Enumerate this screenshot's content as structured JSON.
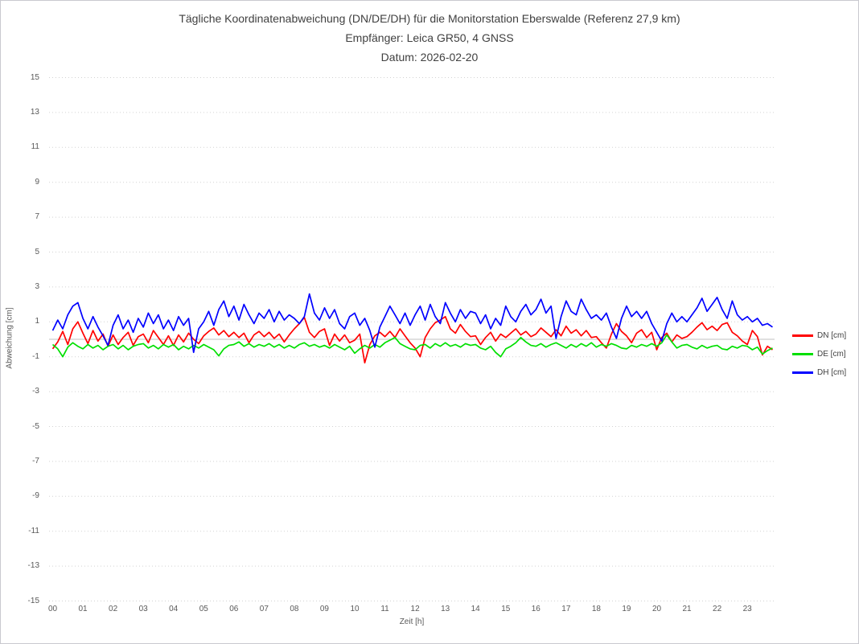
{
  "header": {
    "title": "Tägliche Koordinatenabweichung (DN/DE/DH) für die Monitorstation Eberswalde (Referenz 27,9 km)",
    "subtitle_receiver": "Empfänger: Leica GR50, 4 GNSS",
    "subtitle_date": "Datum: 2026-02-20"
  },
  "colors": {
    "dn": "#ff0000",
    "de": "#00df00",
    "dh": "#0000ff",
    "gridline": "#d2d2d2",
    "zero_line": "#c0c0c0",
    "tick_text": "#595959",
    "title_text": "#404040"
  },
  "chart_data": {
    "type": "line",
    "title": "Tägliche Koordinatenabweichung (DN/DE/DH) für die Monitorstation Eberswalde (Referenz 27,9 km)",
    "subtitle": "Empfänger: Leica GR50, 4 GNSS",
    "date_line": "Datum: 2026-02-20",
    "xlabel": "Zeit [h]",
    "ylabel": "Abweichung [cm]",
    "xlim_hours": [
      0,
      24
    ],
    "ylim": [
      -15,
      15
    ],
    "grid": "horizontal dotted at odd values, solid line at 0",
    "legend_position": "right",
    "xticks": [
      "00",
      "01",
      "02",
      "03",
      "04",
      "05",
      "06",
      "07",
      "08",
      "09",
      "10",
      "11",
      "12",
      "13",
      "14",
      "15",
      "16",
      "17",
      "18",
      "19",
      "20",
      "21",
      "22",
      "23"
    ],
    "yticks": [
      15,
      13,
      11,
      9,
      7,
      5,
      3,
      1,
      -1,
      -3,
      -5,
      -7,
      -9,
      -11,
      -13,
      -15
    ],
    "sample_interval_hours": 0.16667,
    "series": [
      {
        "name": "DN [cm]",
        "color": "#ff0000",
        "values": [
          -0.55,
          -0.15,
          0.45,
          -0.3,
          0.6,
          1.0,
          0.35,
          -0.25,
          0.5,
          -0.1,
          0.3,
          -0.4,
          0.25,
          -0.3,
          0.1,
          0.4,
          -0.35,
          0.15,
          0.3,
          -0.2,
          0.5,
          0.1,
          -0.3,
          0.2,
          -0.35,
          0.25,
          -0.15,
          0.35,
          0.0,
          -0.25,
          0.2,
          0.45,
          0.65,
          0.25,
          0.5,
          0.15,
          0.4,
          0.1,
          0.35,
          -0.2,
          0.25,
          0.45,
          0.15,
          0.4,
          0.05,
          0.3,
          -0.15,
          0.25,
          0.6,
          0.9,
          1.25,
          0.4,
          0.1,
          0.45,
          0.6,
          -0.35,
          0.3,
          -0.1,
          0.25,
          -0.2,
          -0.05,
          0.3,
          -1.35,
          -0.3,
          0.2,
          0.4,
          0.15,
          0.45,
          0.1,
          0.6,
          0.2,
          -0.2,
          -0.5,
          -1.0,
          0.1,
          0.6,
          0.95,
          1.1,
          1.3,
          0.6,
          0.35,
          0.85,
          0.45,
          0.15,
          0.2,
          -0.3,
          0.1,
          0.4,
          -0.1,
          0.3,
          0.1,
          0.35,
          0.6,
          0.25,
          0.45,
          0.15,
          0.3,
          0.65,
          0.4,
          0.15,
          0.55,
          0.2,
          0.75,
          0.35,
          0.55,
          0.2,
          0.5,
          0.1,
          0.15,
          -0.2,
          -0.5,
          0.3,
          0.9,
          0.45,
          0.2,
          -0.2,
          0.35,
          0.55,
          0.1,
          0.4,
          -0.6,
          0.1,
          0.35,
          -0.15,
          0.25,
          0.05,
          0.15,
          0.4,
          0.7,
          0.95,
          0.55,
          0.75,
          0.5,
          0.85,
          0.95,
          0.4,
          0.2,
          -0.1,
          -0.3,
          0.5,
          0.15,
          -0.9,
          -0.4,
          -0.6
        ]
      },
      {
        "name": "DE [cm]",
        "color": "#00df00",
        "values": [
          -0.3,
          -0.55,
          -1.0,
          -0.45,
          -0.2,
          -0.4,
          -0.55,
          -0.3,
          -0.5,
          -0.35,
          -0.6,
          -0.4,
          -0.3,
          -0.55,
          -0.35,
          -0.6,
          -0.4,
          -0.3,
          -0.25,
          -0.5,
          -0.35,
          -0.55,
          -0.3,
          -0.45,
          -0.3,
          -0.6,
          -0.4,
          -0.55,
          -0.35,
          -0.5,
          -0.3,
          -0.45,
          -0.6,
          -0.95,
          -0.55,
          -0.35,
          -0.3,
          -0.15,
          -0.4,
          -0.25,
          -0.45,
          -0.3,
          -0.4,
          -0.25,
          -0.45,
          -0.3,
          -0.5,
          -0.35,
          -0.5,
          -0.3,
          -0.2,
          -0.4,
          -0.3,
          -0.45,
          -0.35,
          -0.5,
          -0.3,
          -0.45,
          -0.6,
          -0.4,
          -0.8,
          -0.55,
          -0.35,
          -0.5,
          -0.3,
          -0.45,
          -0.2,
          -0.05,
          0.1,
          -0.25,
          -0.4,
          -0.55,
          -0.6,
          -0.35,
          -0.3,
          -0.5,
          -0.25,
          -0.4,
          -0.2,
          -0.4,
          -0.3,
          -0.45,
          -0.25,
          -0.35,
          -0.3,
          -0.5,
          -0.6,
          -0.4,
          -0.75,
          -1.0,
          -0.55,
          -0.4,
          -0.2,
          0.1,
          -0.15,
          -0.35,
          -0.4,
          -0.25,
          -0.45,
          -0.3,
          -0.2,
          -0.35,
          -0.5,
          -0.3,
          -0.45,
          -0.25,
          -0.4,
          -0.2,
          -0.45,
          -0.3,
          -0.4,
          -0.25,
          -0.35,
          -0.5,
          -0.55,
          -0.35,
          -0.45,
          -0.3,
          -0.4,
          -0.25,
          -0.4,
          -0.2,
          0.25,
          -0.15,
          -0.5,
          -0.35,
          -0.3,
          -0.45,
          -0.55,
          -0.35,
          -0.5,
          -0.4,
          -0.35,
          -0.55,
          -0.6,
          -0.4,
          -0.5,
          -0.35,
          -0.4,
          -0.6,
          -0.45,
          -0.85,
          -0.65,
          -0.5
        ]
      },
      {
        "name": "DH [cm]",
        "color": "#0000ff",
        "values": [
          0.5,
          1.1,
          0.6,
          1.4,
          1.9,
          2.1,
          1.2,
          0.6,
          1.3,
          0.7,
          0.2,
          -0.35,
          0.8,
          1.4,
          0.6,
          1.1,
          0.4,
          1.2,
          0.7,
          1.5,
          0.9,
          1.4,
          0.6,
          1.1,
          0.5,
          1.3,
          0.8,
          1.2,
          -0.75,
          0.6,
          1.0,
          1.6,
          0.8,
          1.7,
          2.2,
          1.3,
          1.9,
          1.1,
          2.0,
          1.4,
          0.9,
          1.5,
          1.2,
          1.7,
          1.0,
          1.6,
          1.1,
          1.4,
          1.2,
          0.9,
          1.3,
          2.6,
          1.5,
          1.1,
          1.8,
          1.2,
          1.7,
          0.9,
          0.6,
          1.3,
          1.5,
          0.8,
          1.2,
          0.5,
          -0.45,
          0.7,
          1.3,
          1.9,
          1.4,
          0.9,
          1.5,
          0.8,
          1.4,
          1.9,
          1.1,
          2.0,
          1.3,
          0.9,
          2.1,
          1.5,
          1.0,
          1.7,
          1.2,
          1.6,
          1.5,
          0.9,
          1.4,
          0.6,
          1.2,
          0.8,
          1.9,
          1.3,
          1.0,
          1.6,
          2.0,
          1.4,
          1.7,
          2.3,
          1.5,
          1.9,
          0.05,
          1.3,
          2.2,
          1.6,
          1.4,
          2.3,
          1.7,
          1.2,
          1.4,
          1.1,
          1.5,
          0.7,
          0.05,
          1.2,
          1.9,
          1.3,
          1.6,
          1.2,
          1.6,
          0.9,
          0.4,
          -0.1,
          0.9,
          1.5,
          1.0,
          1.3,
          1.0,
          1.4,
          1.8,
          2.35,
          1.6,
          2.0,
          2.4,
          1.7,
          1.2,
          2.2,
          1.4,
          1.1,
          1.3,
          1.0,
          1.2,
          0.8,
          0.9,
          0.7
        ]
      }
    ]
  }
}
